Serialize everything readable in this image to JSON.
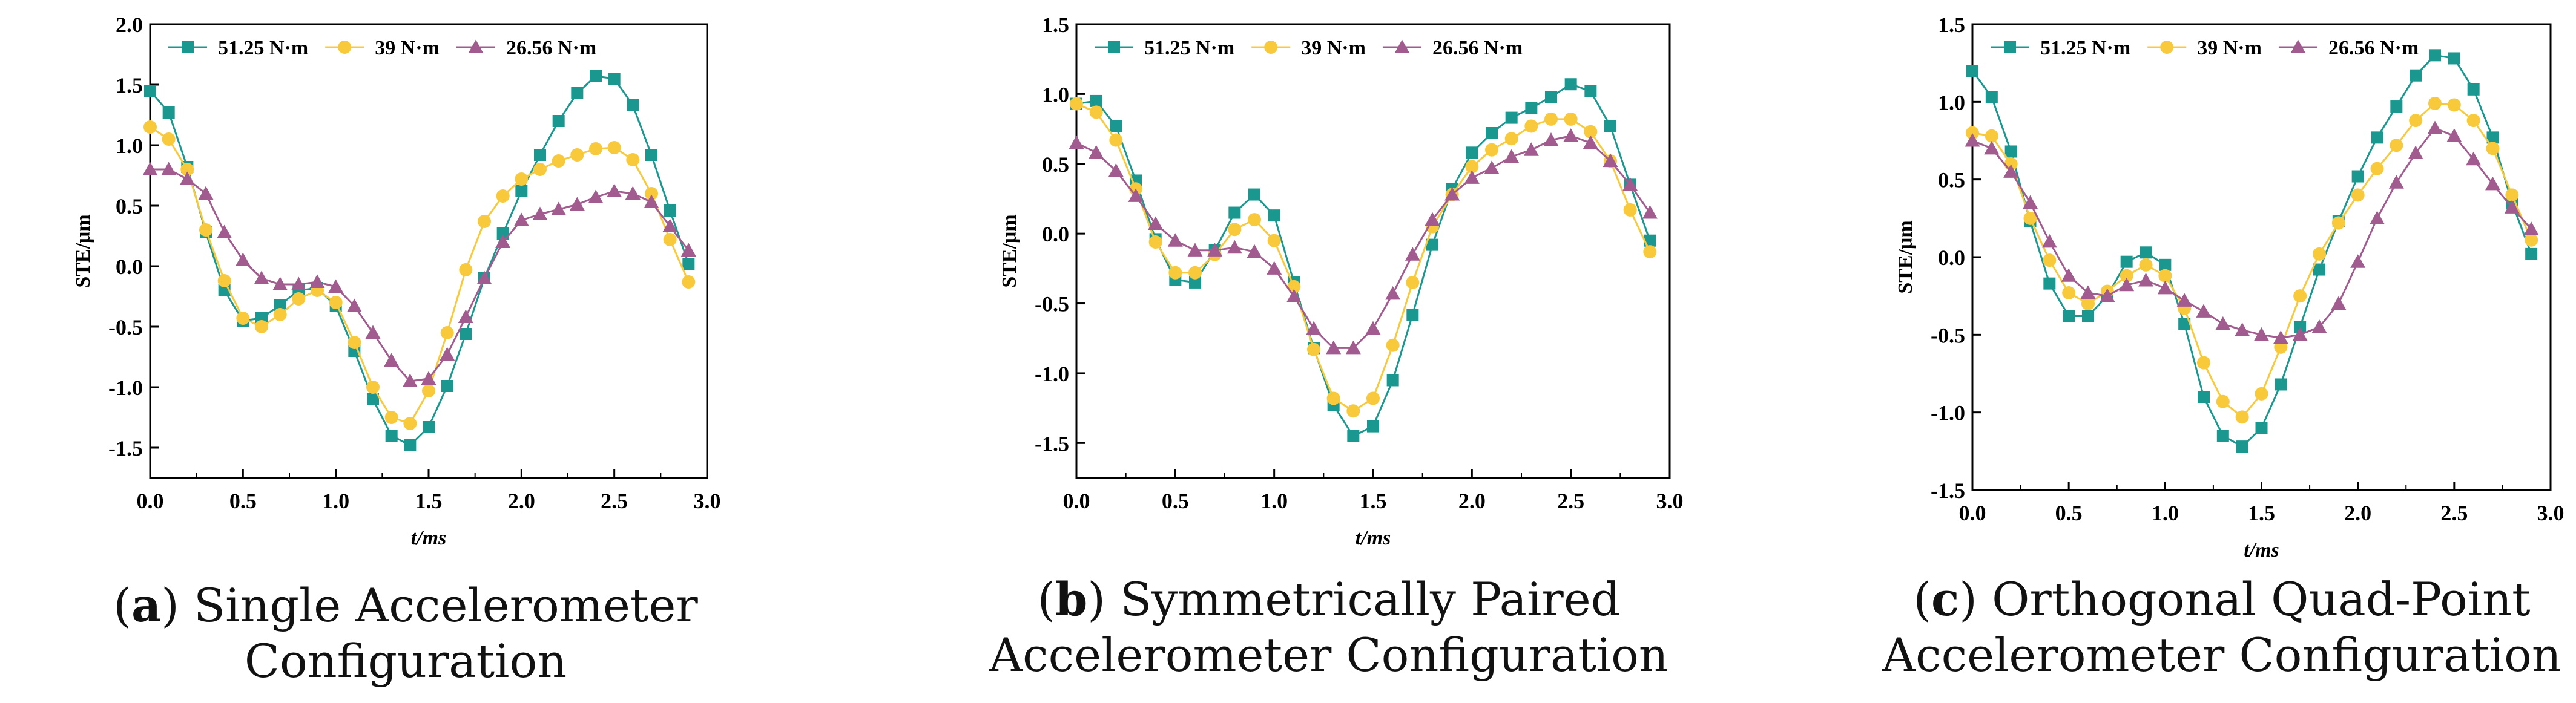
{
  "series_styles": [
    {
      "color": "#1a9890",
      "marker": "square"
    },
    {
      "color": "#f9c93c",
      "marker": "circle"
    },
    {
      "color": "#a25b8f",
      "marker": "triangle"
    }
  ],
  "captions": [
    {
      "letter": "a",
      "text": "Single Accelerometer Configuration"
    },
    {
      "letter": "b",
      "text": "Symmetrically Paired Accelerometer Configuration"
    },
    {
      "letter": "c",
      "text": "Orthogonal Quad-Point Accelerometer Configuration"
    }
  ],
  "chart_data": [
    {
      "type": "line",
      "title": "",
      "xlabel": "t/ms",
      "ylabel": "STE/μm",
      "xlim": [
        0,
        3.0
      ],
      "ylim": [
        -1.75,
        2.0
      ],
      "xticks": [
        0.0,
        0.5,
        1.0,
        1.5,
        2.0,
        2.5,
        3.0
      ],
      "xtick_labels": [
        "0.0",
        "0.5",
        "1.0",
        "1.5",
        "2.0",
        "2.5",
        "3.0"
      ],
      "yticks": [
        -1.5,
        -1.0,
        -0.5,
        0.0,
        0.5,
        1.0,
        1.5,
        2.0
      ],
      "ytick_labels": [
        "-1.5",
        "-1.0",
        "-0.5",
        "0.0",
        "0.5",
        "1.0",
        "1.5",
        "2.0"
      ],
      "legend_position": "top",
      "x": [
        0.0,
        0.1,
        0.2,
        0.3,
        0.4,
        0.5,
        0.6,
        0.7,
        0.8,
        0.9,
        1.0,
        1.1,
        1.2,
        1.3,
        1.4,
        1.5,
        1.6,
        1.7,
        1.8,
        1.9,
        2.0,
        2.1,
        2.2,
        2.3,
        2.4,
        2.5,
        2.6,
        2.7,
        2.8,
        2.9
      ],
      "series": [
        {
          "name": "51.25 N·m",
          "values": [
            1.45,
            1.27,
            0.82,
            0.28,
            -0.2,
            -0.45,
            -0.43,
            -0.32,
            -0.2,
            -0.18,
            -0.33,
            -0.7,
            -1.1,
            -1.4,
            -1.48,
            -1.33,
            -0.99,
            -0.56,
            -0.1,
            0.27,
            0.62,
            0.92,
            1.2,
            1.43,
            1.57,
            1.55,
            1.33,
            0.92,
            0.46,
            0.02
          ]
        },
        {
          "name": "39 N·m",
          "values": [
            1.15,
            1.05,
            0.8,
            0.3,
            -0.12,
            -0.43,
            -0.5,
            -0.4,
            -0.27,
            -0.2,
            -0.3,
            -0.63,
            -1.0,
            -1.25,
            -1.3,
            -1.03,
            -0.55,
            -0.03,
            0.37,
            0.58,
            0.72,
            0.8,
            0.87,
            0.92,
            0.97,
            0.98,
            0.88,
            0.6,
            0.22,
            -0.13
          ]
        },
        {
          "name": "26.56 N·m",
          "values": [
            0.8,
            0.8,
            0.72,
            0.6,
            0.28,
            0.05,
            -0.1,
            -0.15,
            -0.15,
            -0.13,
            -0.17,
            -0.33,
            -0.55,
            -0.78,
            -0.95,
            -0.93,
            -0.73,
            -0.42,
            -0.1,
            0.2,
            0.38,
            0.43,
            0.47,
            0.51,
            0.57,
            0.62,
            0.6,
            0.53,
            0.33,
            0.13
          ]
        }
      ]
    },
    {
      "type": "line",
      "title": "",
      "xlabel": "t/ms",
      "ylabel": "STE/μm",
      "xlim": [
        0,
        3.0
      ],
      "ylim": [
        -1.75,
        1.5
      ],
      "xticks": [
        0.0,
        0.5,
        1.0,
        1.5,
        2.0,
        2.5,
        3.0
      ],
      "xtick_labels": [
        "0.0",
        "0.5",
        "1.0",
        "1.5",
        "2.0",
        "2.5",
        "3.0"
      ],
      "yticks": [
        -1.5,
        -1.0,
        -0.5,
        0.0,
        0.5,
        1.0,
        1.5
      ],
      "ytick_labels": [
        "-1.5",
        "-1.0",
        "-0.5",
        "0.0",
        "0.5",
        "1.0",
        "1.5"
      ],
      "legend_position": "top",
      "x": [
        0.0,
        0.1,
        0.2,
        0.3,
        0.4,
        0.5,
        0.6,
        0.7,
        0.8,
        0.9,
        1.0,
        1.1,
        1.2,
        1.3,
        1.4,
        1.5,
        1.6,
        1.7,
        1.8,
        1.9,
        2.0,
        2.1,
        2.2,
        2.3,
        2.4,
        2.5,
        2.6,
        2.7,
        2.8,
        2.9
      ],
      "series": [
        {
          "name": "51.25 N·m",
          "values": [
            0.93,
            0.95,
            0.77,
            0.38,
            -0.04,
            -0.33,
            -0.35,
            -0.12,
            0.15,
            0.28,
            0.13,
            -0.35,
            -0.82,
            -1.23,
            -1.45,
            -1.38,
            -1.05,
            -0.58,
            -0.08,
            0.32,
            0.58,
            0.72,
            0.83,
            0.9,
            0.98,
            1.07,
            1.02,
            0.77,
            0.35,
            -0.05
          ]
        },
        {
          "name": "39 N·m",
          "values": [
            0.93,
            0.87,
            0.67,
            0.32,
            -0.06,
            -0.28,
            -0.28,
            -0.15,
            0.03,
            0.1,
            -0.05,
            -0.38,
            -0.83,
            -1.18,
            -1.27,
            -1.18,
            -0.8,
            -0.35,
            0.05,
            0.28,
            0.48,
            0.6,
            0.68,
            0.77,
            0.82,
            0.82,
            0.73,
            0.52,
            0.17,
            -0.13
          ]
        },
        {
          "name": "26.56 N·m",
          "values": [
            0.65,
            0.58,
            0.45,
            0.27,
            0.07,
            -0.05,
            -0.12,
            -0.12,
            -0.1,
            -0.13,
            -0.25,
            -0.45,
            -0.68,
            -0.82,
            -0.82,
            -0.68,
            -0.43,
            -0.15,
            0.1,
            0.28,
            0.4,
            0.47,
            0.55,
            0.6,
            0.67,
            0.7,
            0.65,
            0.52,
            0.35,
            0.15
          ]
        }
      ]
    },
    {
      "type": "line",
      "title": "",
      "xlabel": "t/ms",
      "ylabel": "STE/μm",
      "xlim": [
        0,
        3.0
      ],
      "ylim": [
        -1.5,
        1.5
      ],
      "xticks": [
        0.0,
        0.5,
        1.0,
        1.5,
        2.0,
        2.5,
        3.0
      ],
      "xtick_labels": [
        "0.0",
        "0.5",
        "1.0",
        "1.5",
        "2.0",
        "2.5",
        "3.0"
      ],
      "yticks": [
        -1.5,
        -1.0,
        -0.5,
        0.0,
        0.5,
        1.0,
        1.5
      ],
      "ytick_labels": [
        "-1.5",
        "-1.0",
        "-0.5",
        "0.0",
        "0.5",
        "1.0",
        "1.5"
      ],
      "legend_position": "top",
      "x": [
        0.0,
        0.1,
        0.2,
        0.3,
        0.4,
        0.5,
        0.6,
        0.7,
        0.8,
        0.9,
        1.0,
        1.1,
        1.2,
        1.3,
        1.4,
        1.5,
        1.6,
        1.7,
        1.8,
        1.9,
        2.0,
        2.1,
        2.2,
        2.3,
        2.4,
        2.5,
        2.6,
        2.7,
        2.8,
        2.9
      ],
      "series": [
        {
          "name": "51.25 N·m",
          "values": [
            1.2,
            1.03,
            0.68,
            0.23,
            -0.17,
            -0.38,
            -0.38,
            -0.25,
            -0.03,
            0.03,
            -0.05,
            -0.43,
            -0.9,
            -1.15,
            -1.22,
            -1.1,
            -0.82,
            -0.45,
            -0.08,
            0.23,
            0.52,
            0.77,
            0.97,
            1.17,
            1.3,
            1.28,
            1.08,
            0.77,
            0.35,
            0.02
          ]
        },
        {
          "name": "39 N·m",
          "values": [
            0.8,
            0.78,
            0.6,
            0.25,
            -0.02,
            -0.23,
            -0.3,
            -0.22,
            -0.12,
            -0.05,
            -0.12,
            -0.33,
            -0.68,
            -0.93,
            -1.03,
            -0.88,
            -0.58,
            -0.25,
            0.02,
            0.22,
            0.4,
            0.57,
            0.72,
            0.88,
            0.99,
            0.98,
            0.88,
            0.7,
            0.4,
            0.11
          ]
        },
        {
          "name": "26.56 N·m",
          "values": [
            0.75,
            0.7,
            0.55,
            0.35,
            0.1,
            -0.12,
            -0.23,
            -0.25,
            -0.18,
            -0.15,
            -0.2,
            -0.28,
            -0.35,
            -0.43,
            -0.47,
            -0.5,
            -0.52,
            -0.5,
            -0.45,
            -0.3,
            -0.03,
            0.25,
            0.48,
            0.67,
            0.83,
            0.78,
            0.63,
            0.47,
            0.32,
            0.18
          ]
        }
      ]
    }
  ]
}
